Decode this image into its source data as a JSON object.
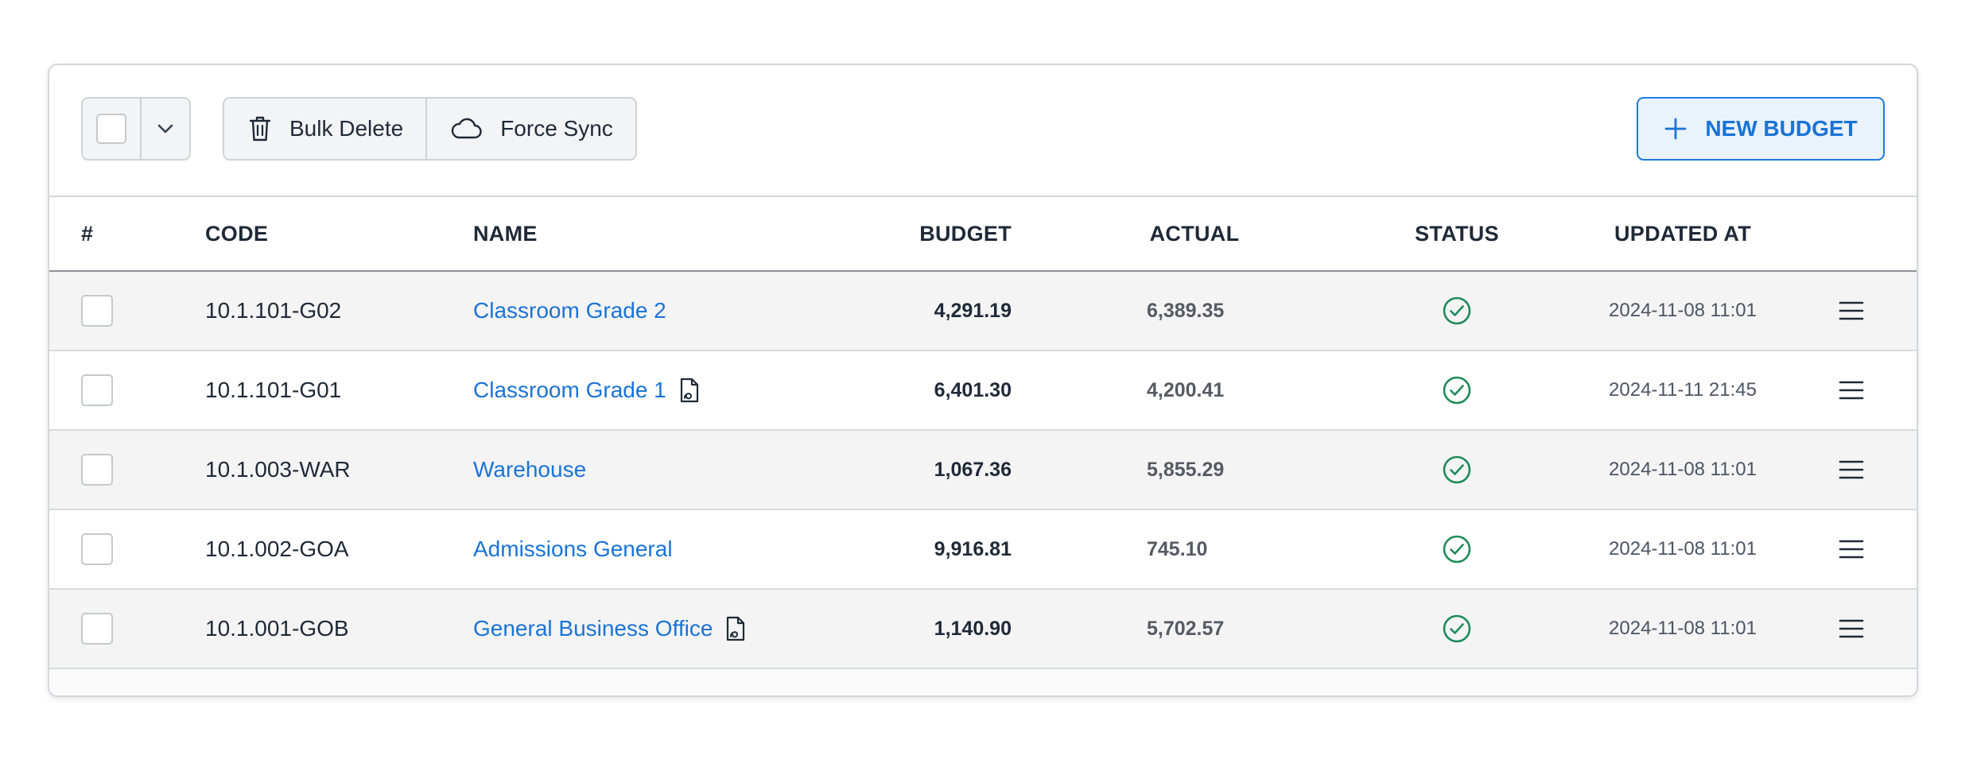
{
  "toolbar": {
    "bulk_delete_label": "Bulk Delete",
    "force_sync_label": "Force Sync",
    "new_budget_label": "NEW BUDGET"
  },
  "table": {
    "headers": {
      "index": "#",
      "code": "CODE",
      "name": "NAME",
      "budget": "BUDGET",
      "actual": "ACTUAL",
      "status": "STATUS",
      "updated_at": "UPDATED AT"
    },
    "rows": [
      {
        "code": "10.1.101-G02",
        "name": "Classroom Grade 2",
        "has_doc_icon": false,
        "budget": "4,291.19",
        "actual": "6,389.35",
        "status": "ok",
        "updated_at": "2024-11-08 11:01"
      },
      {
        "code": "10.1.101-G01",
        "name": "Classroom Grade 1",
        "has_doc_icon": true,
        "budget": "6,401.30",
        "actual": "4,200.41",
        "status": "ok",
        "updated_at": "2024-11-11 21:45"
      },
      {
        "code": "10.1.003-WAR",
        "name": "Warehouse",
        "has_doc_icon": false,
        "budget": "1,067.36",
        "actual": "5,855.29",
        "status": "ok",
        "updated_at": "2024-11-08 11:01"
      },
      {
        "code": "10.1.002-GOA",
        "name": "Admissions General",
        "has_doc_icon": false,
        "budget": "9,916.81",
        "actual": "745.10",
        "status": "ok",
        "updated_at": "2024-11-08 11:01"
      },
      {
        "code": "10.1.001-GOB",
        "name": "General Business Office",
        "has_doc_icon": true,
        "budget": "1,140.90",
        "actual": "5,702.57",
        "status": "ok",
        "updated_at": "2024-11-08 11:01"
      }
    ]
  },
  "icons": {
    "select_chevron": "chevron-down-icon",
    "bulk_delete": "trash-icon",
    "force_sync": "cloud-icon",
    "new_budget": "plus-icon",
    "status_ok": "check-circle-icon",
    "row_menu": "hamburger-menu-icon",
    "document": "document-icon"
  },
  "colors": {
    "accent": "#1a73d6",
    "status_ok": "#1e8a5a",
    "row_alt": "#f4f4f5",
    "border": "#d4d6d9"
  }
}
